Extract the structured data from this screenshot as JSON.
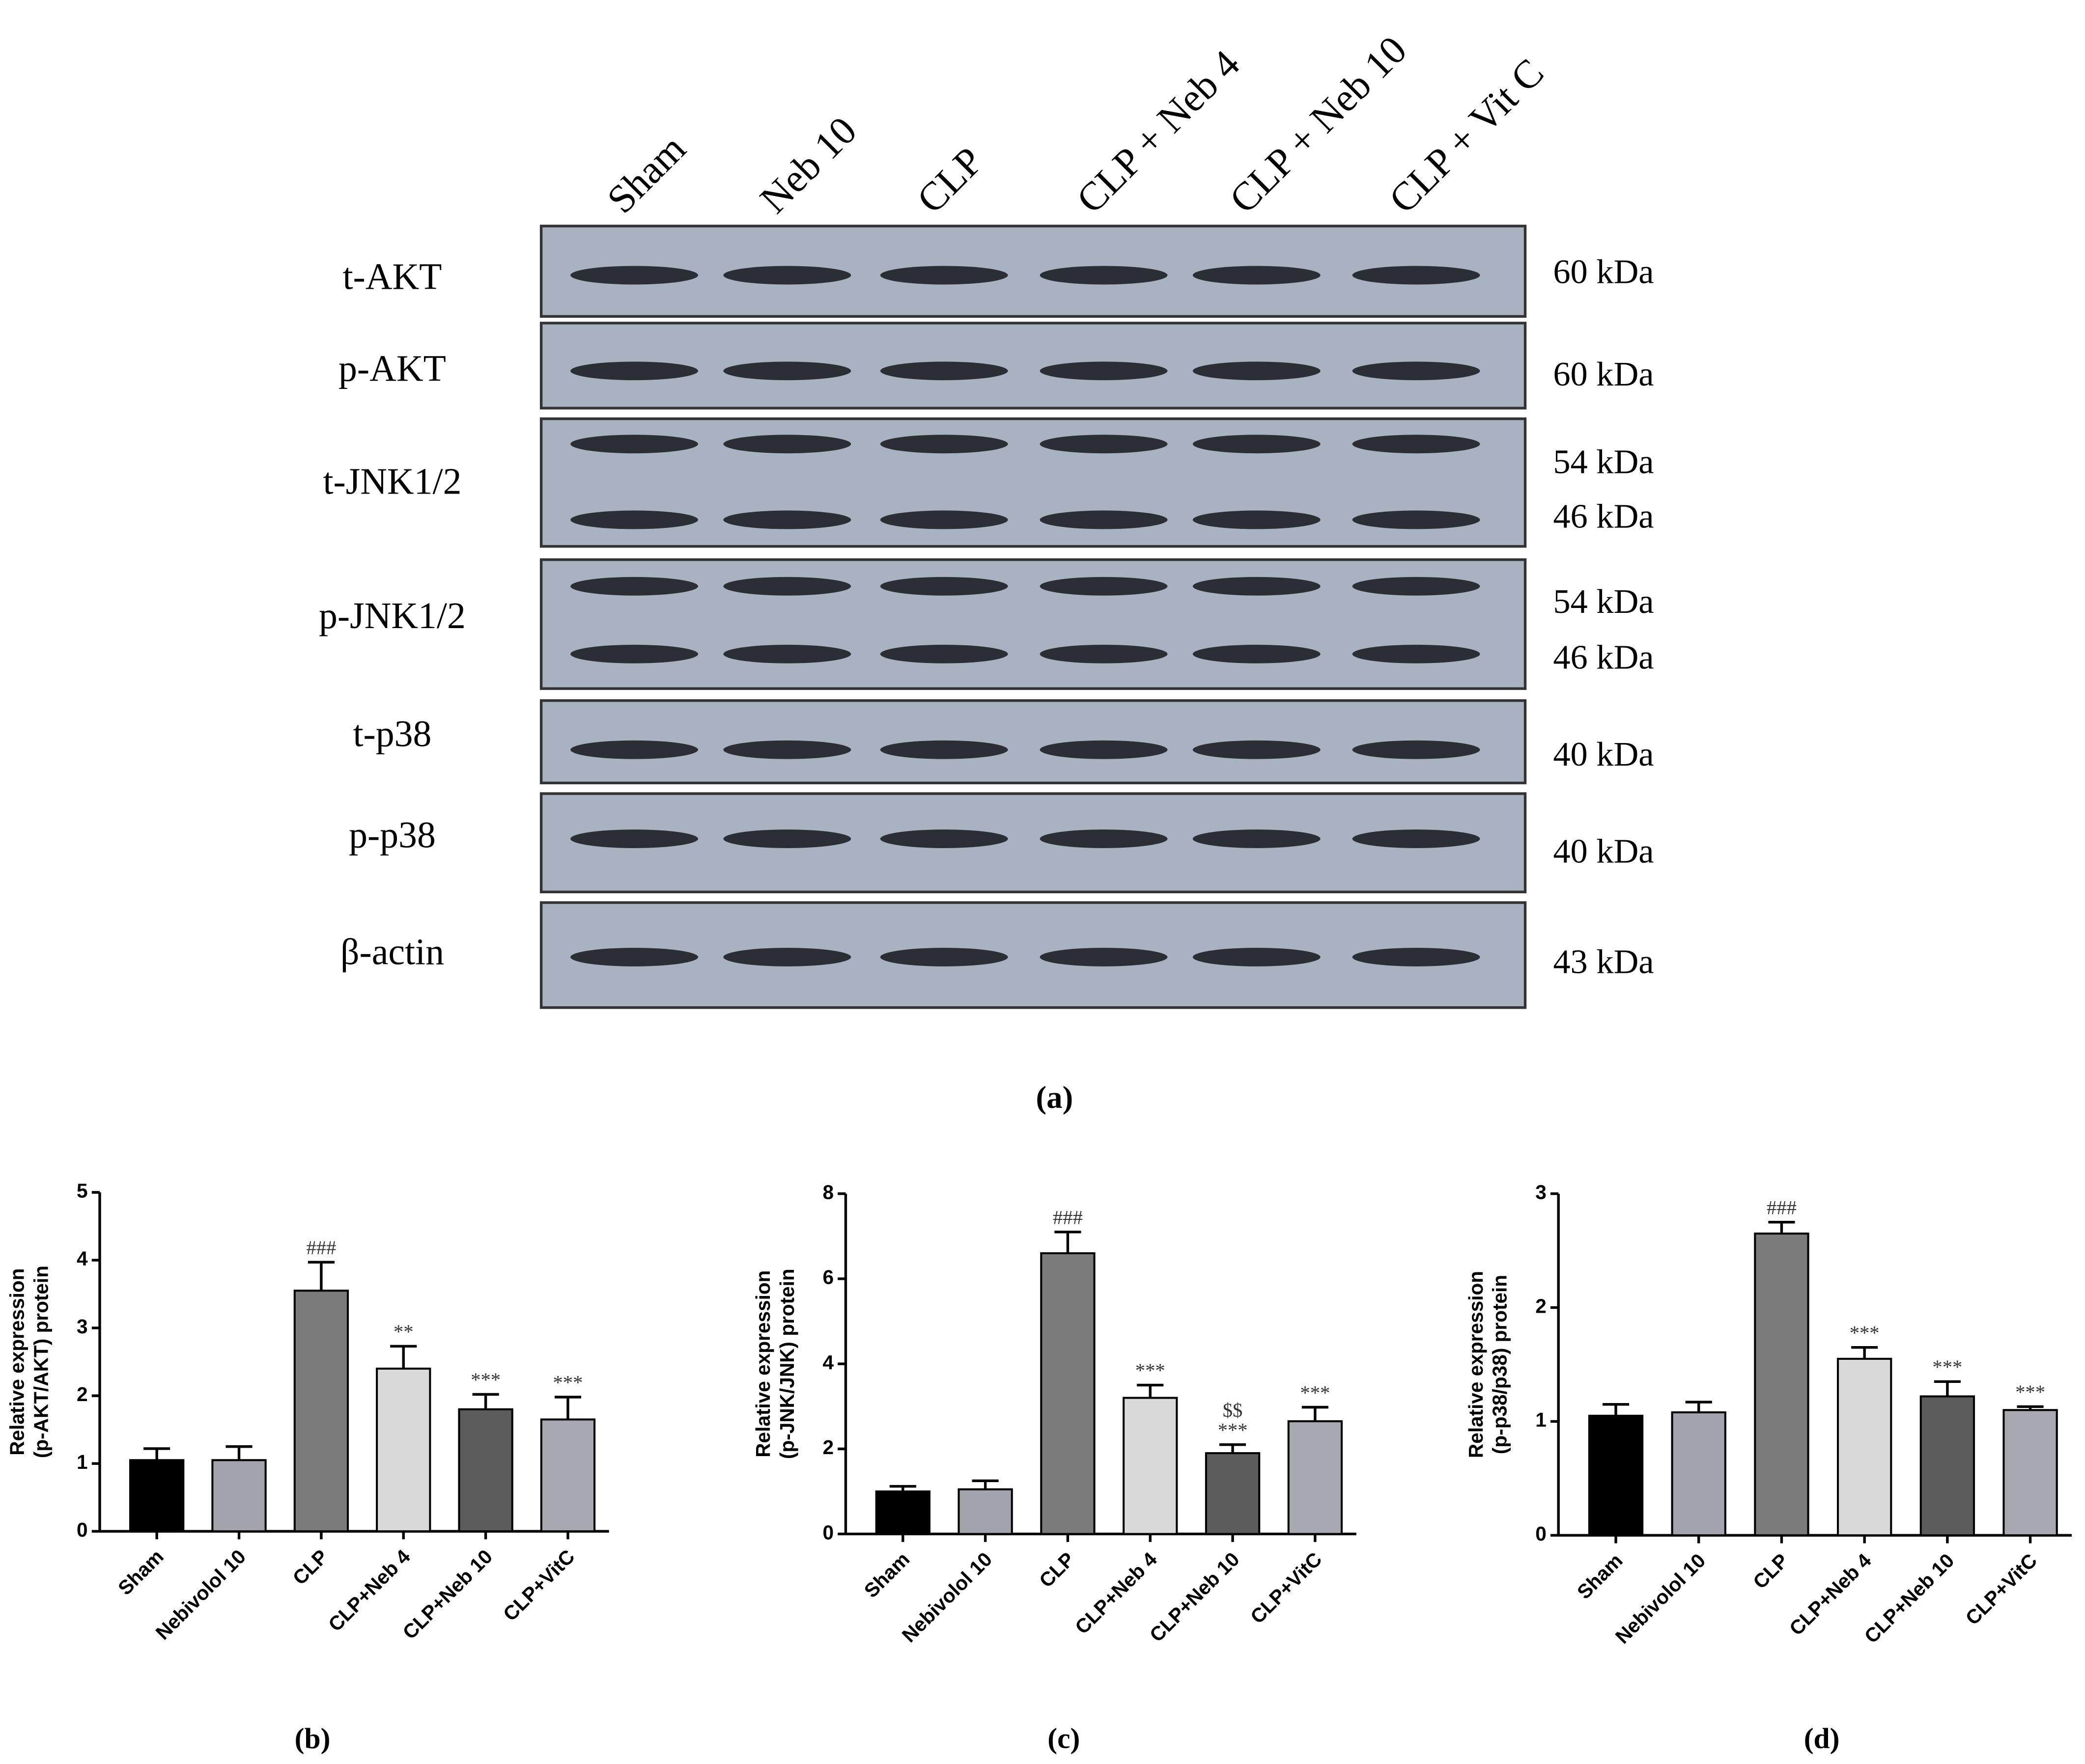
{
  "blot": {
    "lanes": [
      "Sham",
      "Neb 10",
      "CLP",
      "CLP + Neb 4",
      "CLP + Neb 10",
      "CLP + Vit C"
    ],
    "rows": [
      {
        "label": "t-AKT",
        "kda": [
          "60 kDa"
        ]
      },
      {
        "label": "p-AKT",
        "kda": [
          "60 kDa"
        ]
      },
      {
        "label": "t-JNK1/2",
        "kda": [
          "54 kDa",
          "46 kDa"
        ]
      },
      {
        "label": "p-JNK1/2",
        "kda": [
          "54 kDa",
          "46 kDa"
        ]
      },
      {
        "label": "t-p38",
        "kda": [
          "40 kDa"
        ]
      },
      {
        "label": "p-p38",
        "kda": [
          "40 kDa"
        ]
      },
      {
        "label": "β-actin",
        "kda": [
          "43 kDa"
        ]
      }
    ],
    "caption": "(a)"
  },
  "chart_data": [
    {
      "type": "bar",
      "caption": "(b)",
      "ylabel": [
        "Relative expression",
        "(p-AKT/AKT) protein"
      ],
      "categories": [
        "Sham",
        "Nebivolol 10",
        "CLP",
        "CLP+Neb 4",
        "CLP+Neb 10",
        "CLP+VitC"
      ],
      "values": [
        1.05,
        1.05,
        3.55,
        2.4,
        1.8,
        1.65
      ],
      "errors": [
        0.17,
        0.2,
        0.42,
        0.33,
        0.22,
        0.33
      ],
      "colors": [
        "#000000",
        "#a3a3ac",
        "#7b7b7b",
        "#d9d9d9",
        "#5c5c5c",
        "#a8a8b0"
      ],
      "annotations": [
        null,
        null,
        [
          "###"
        ],
        [
          "**"
        ],
        [
          "***"
        ],
        [
          "***"
        ]
      ],
      "ylim": [
        0,
        5
      ],
      "yticks": [
        0,
        1,
        2,
        3,
        4,
        5
      ]
    },
    {
      "type": "bar",
      "caption": "(c)",
      "ylabel": [
        "Relative expression",
        "(p-JNK/JNK) protein"
      ],
      "categories": [
        "Sham",
        "Nebivolol 10",
        "CLP",
        "CLP+Neb 4",
        "CLP+Neb 10",
        "CLP+VitC"
      ],
      "values": [
        1.0,
        1.05,
        6.6,
        3.2,
        1.9,
        2.65
      ],
      "errors": [
        0.12,
        0.2,
        0.5,
        0.3,
        0.2,
        0.33
      ],
      "colors": [
        "#000000",
        "#a3a3ac",
        "#7b7b7b",
        "#d9d9d9",
        "#5c5c5c",
        "#a8a8b0"
      ],
      "annotations": [
        null,
        null,
        [
          "###"
        ],
        [
          "***"
        ],
        [
          "$$",
          "***"
        ],
        [
          "***"
        ]
      ],
      "ylim": [
        0,
        8
      ],
      "yticks": [
        0,
        2,
        4,
        6,
        8
      ]
    },
    {
      "type": "bar",
      "caption": "(d)",
      "ylabel": [
        "Relative expression",
        "(p-p38/p38) protein"
      ],
      "categories": [
        "Sham",
        "Nebivolol 10",
        "CLP",
        "CLP+Neb 4",
        "CLP+Neb 10",
        "CLP+VitC"
      ],
      "values": [
        1.05,
        1.08,
        2.65,
        1.55,
        1.22,
        1.1
      ],
      "errors": [
        0.1,
        0.09,
        0.1,
        0.1,
        0.13,
        0.03
      ],
      "colors": [
        "#000000",
        "#a3a3ac",
        "#7b7b7b",
        "#d9d9d9",
        "#5c5c5c",
        "#a8a8b0"
      ],
      "annotations": [
        null,
        null,
        [
          "###"
        ],
        [
          "***"
        ],
        [
          "***"
        ],
        [
          "***"
        ]
      ],
      "ylim": [
        0,
        3
      ],
      "yticks": [
        0,
        1,
        2,
        3
      ]
    }
  ]
}
